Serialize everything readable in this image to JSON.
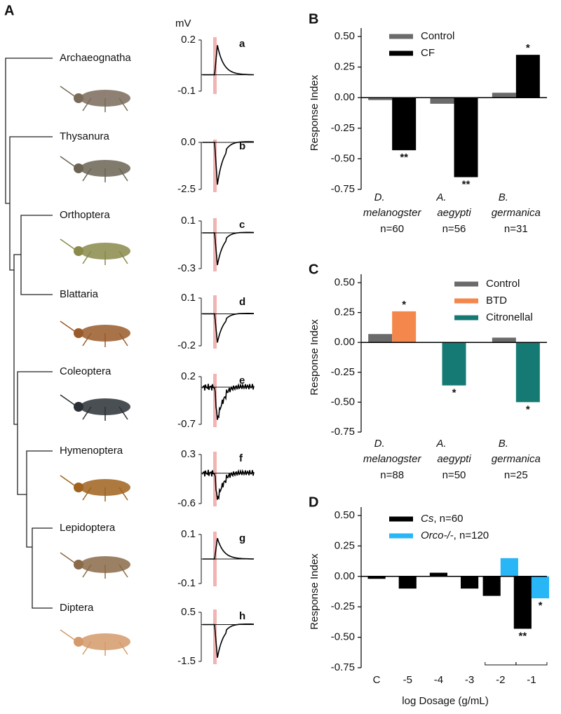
{
  "panel_a": {
    "label": "A",
    "unit": "mV",
    "rows": [
      {
        "taxon": "Archaeognatha",
        "trace": "a",
        "top": "0.2",
        "bottom": "-0.1"
      },
      {
        "taxon": "Thysanura",
        "trace": "b",
        "top": "0.0",
        "bottom": "-2.5"
      },
      {
        "taxon": "Orthoptera",
        "trace": "c",
        "top": "0.1",
        "bottom": "-0.3"
      },
      {
        "taxon": "Blattaria",
        "trace": "d",
        "top": "0.1",
        "bottom": "-0.2"
      },
      {
        "taxon": "Coleoptera",
        "trace": "e",
        "top": "0.2",
        "bottom": "-0.7"
      },
      {
        "taxon": "Hymenoptera",
        "trace": "f",
        "top": "0.3",
        "bottom": "-0.6"
      },
      {
        "taxon": "Lepidoptera",
        "trace": "g",
        "top": "0.1",
        "bottom": "-0.1"
      },
      {
        "taxon": "Diptera",
        "trace": "h",
        "top": "0.5",
        "bottom": "-1.5"
      }
    ]
  },
  "chart_data": [
    {
      "type": "bar",
      "panel": "B",
      "ylabel": "Response Index",
      "categories": [
        "D. melanogster",
        "A. aegypti",
        "B. germanica"
      ],
      "n_labels": [
        "n=60",
        "n=56",
        "n=31"
      ],
      "series": [
        {
          "name": "Control",
          "color": "#6b6b6b",
          "values": [
            -0.02,
            -0.05,
            0.04
          ]
        },
        {
          "name": "CF",
          "color": "#000000",
          "values": [
            -0.43,
            -0.65,
            0.35
          ],
          "annotations": [
            "**",
            "**",
            "*"
          ]
        }
      ],
      "ylim": [
        -0.75,
        0.5
      ],
      "yticks": [
        {
          "value": 0.5,
          "label": "0.50"
        },
        0.25,
        {
          "value": 0,
          "label": "0.00"
        },
        -0.25,
        {
          "value": -0.5,
          "label": "-0.50"
        },
        -0.75
      ],
      "legend": "top-center"
    },
    {
      "type": "bar",
      "panel": "C",
      "ylabel": "Response Index",
      "categories": [
        "D. melanogster",
        "A. aegypti",
        "B. germanica"
      ],
      "n_labels": [
        "n=88",
        "n=50",
        "n=25"
      ],
      "series": [
        {
          "name": "Control",
          "color": "#6b6b6b",
          "values": [
            0.07,
            null,
            0.04
          ]
        },
        {
          "name": "BTD",
          "color": "#f4874b",
          "values": [
            0.26,
            null,
            null
          ],
          "annotations": [
            "*",
            null,
            null
          ]
        },
        {
          "name": "Citronellal",
          "color": "#167a74",
          "values": [
            null,
            -0.36,
            -0.5
          ],
          "annotations": [
            null,
            "*",
            "*"
          ]
        }
      ],
      "ylim": [
        -0.75,
        0.5
      ],
      "yticks": [
        {
          "value": 0.5,
          "label": "0.50"
        },
        0.25,
        {
          "value": 0,
          "label": "0.00"
        },
        -0.25,
        {
          "value": -0.5,
          "label": "-0.50"
        },
        -0.75
      ],
      "legend": "top-right"
    },
    {
      "type": "bar",
      "panel": "D",
      "ylabel": "Response Index",
      "xlabel": "log Dosage (g/mL)",
      "categories": [
        "C",
        "-5",
        "-4",
        "-3",
        "-2",
        "-1"
      ],
      "series": [
        {
          "name": "Cs, n=60",
          "color": "#000000",
          "values": [
            -0.02,
            -0.1,
            0.03,
            -0.1,
            -0.16,
            -0.43
          ],
          "annotations": [
            null,
            null,
            null,
            null,
            null,
            "**"
          ]
        },
        {
          "name": "Orco-/-, n=120",
          "color": "#29b6f6",
          "values": [
            null,
            null,
            null,
            null,
            0.15,
            -0.18
          ],
          "annotations": [
            null,
            null,
            null,
            null,
            null,
            "*"
          ]
        }
      ],
      "ylim": [
        -0.75,
        0.5
      ],
      "yticks": [
        {
          "value": 0.5,
          "label": "0.50"
        },
        0.25,
        {
          "value": 0,
          "label": "0.00"
        },
        -0.25,
        {
          "value": -0.5,
          "label": "-0.50"
        },
        -0.75
      ],
      "legend": "top-center"
    }
  ]
}
